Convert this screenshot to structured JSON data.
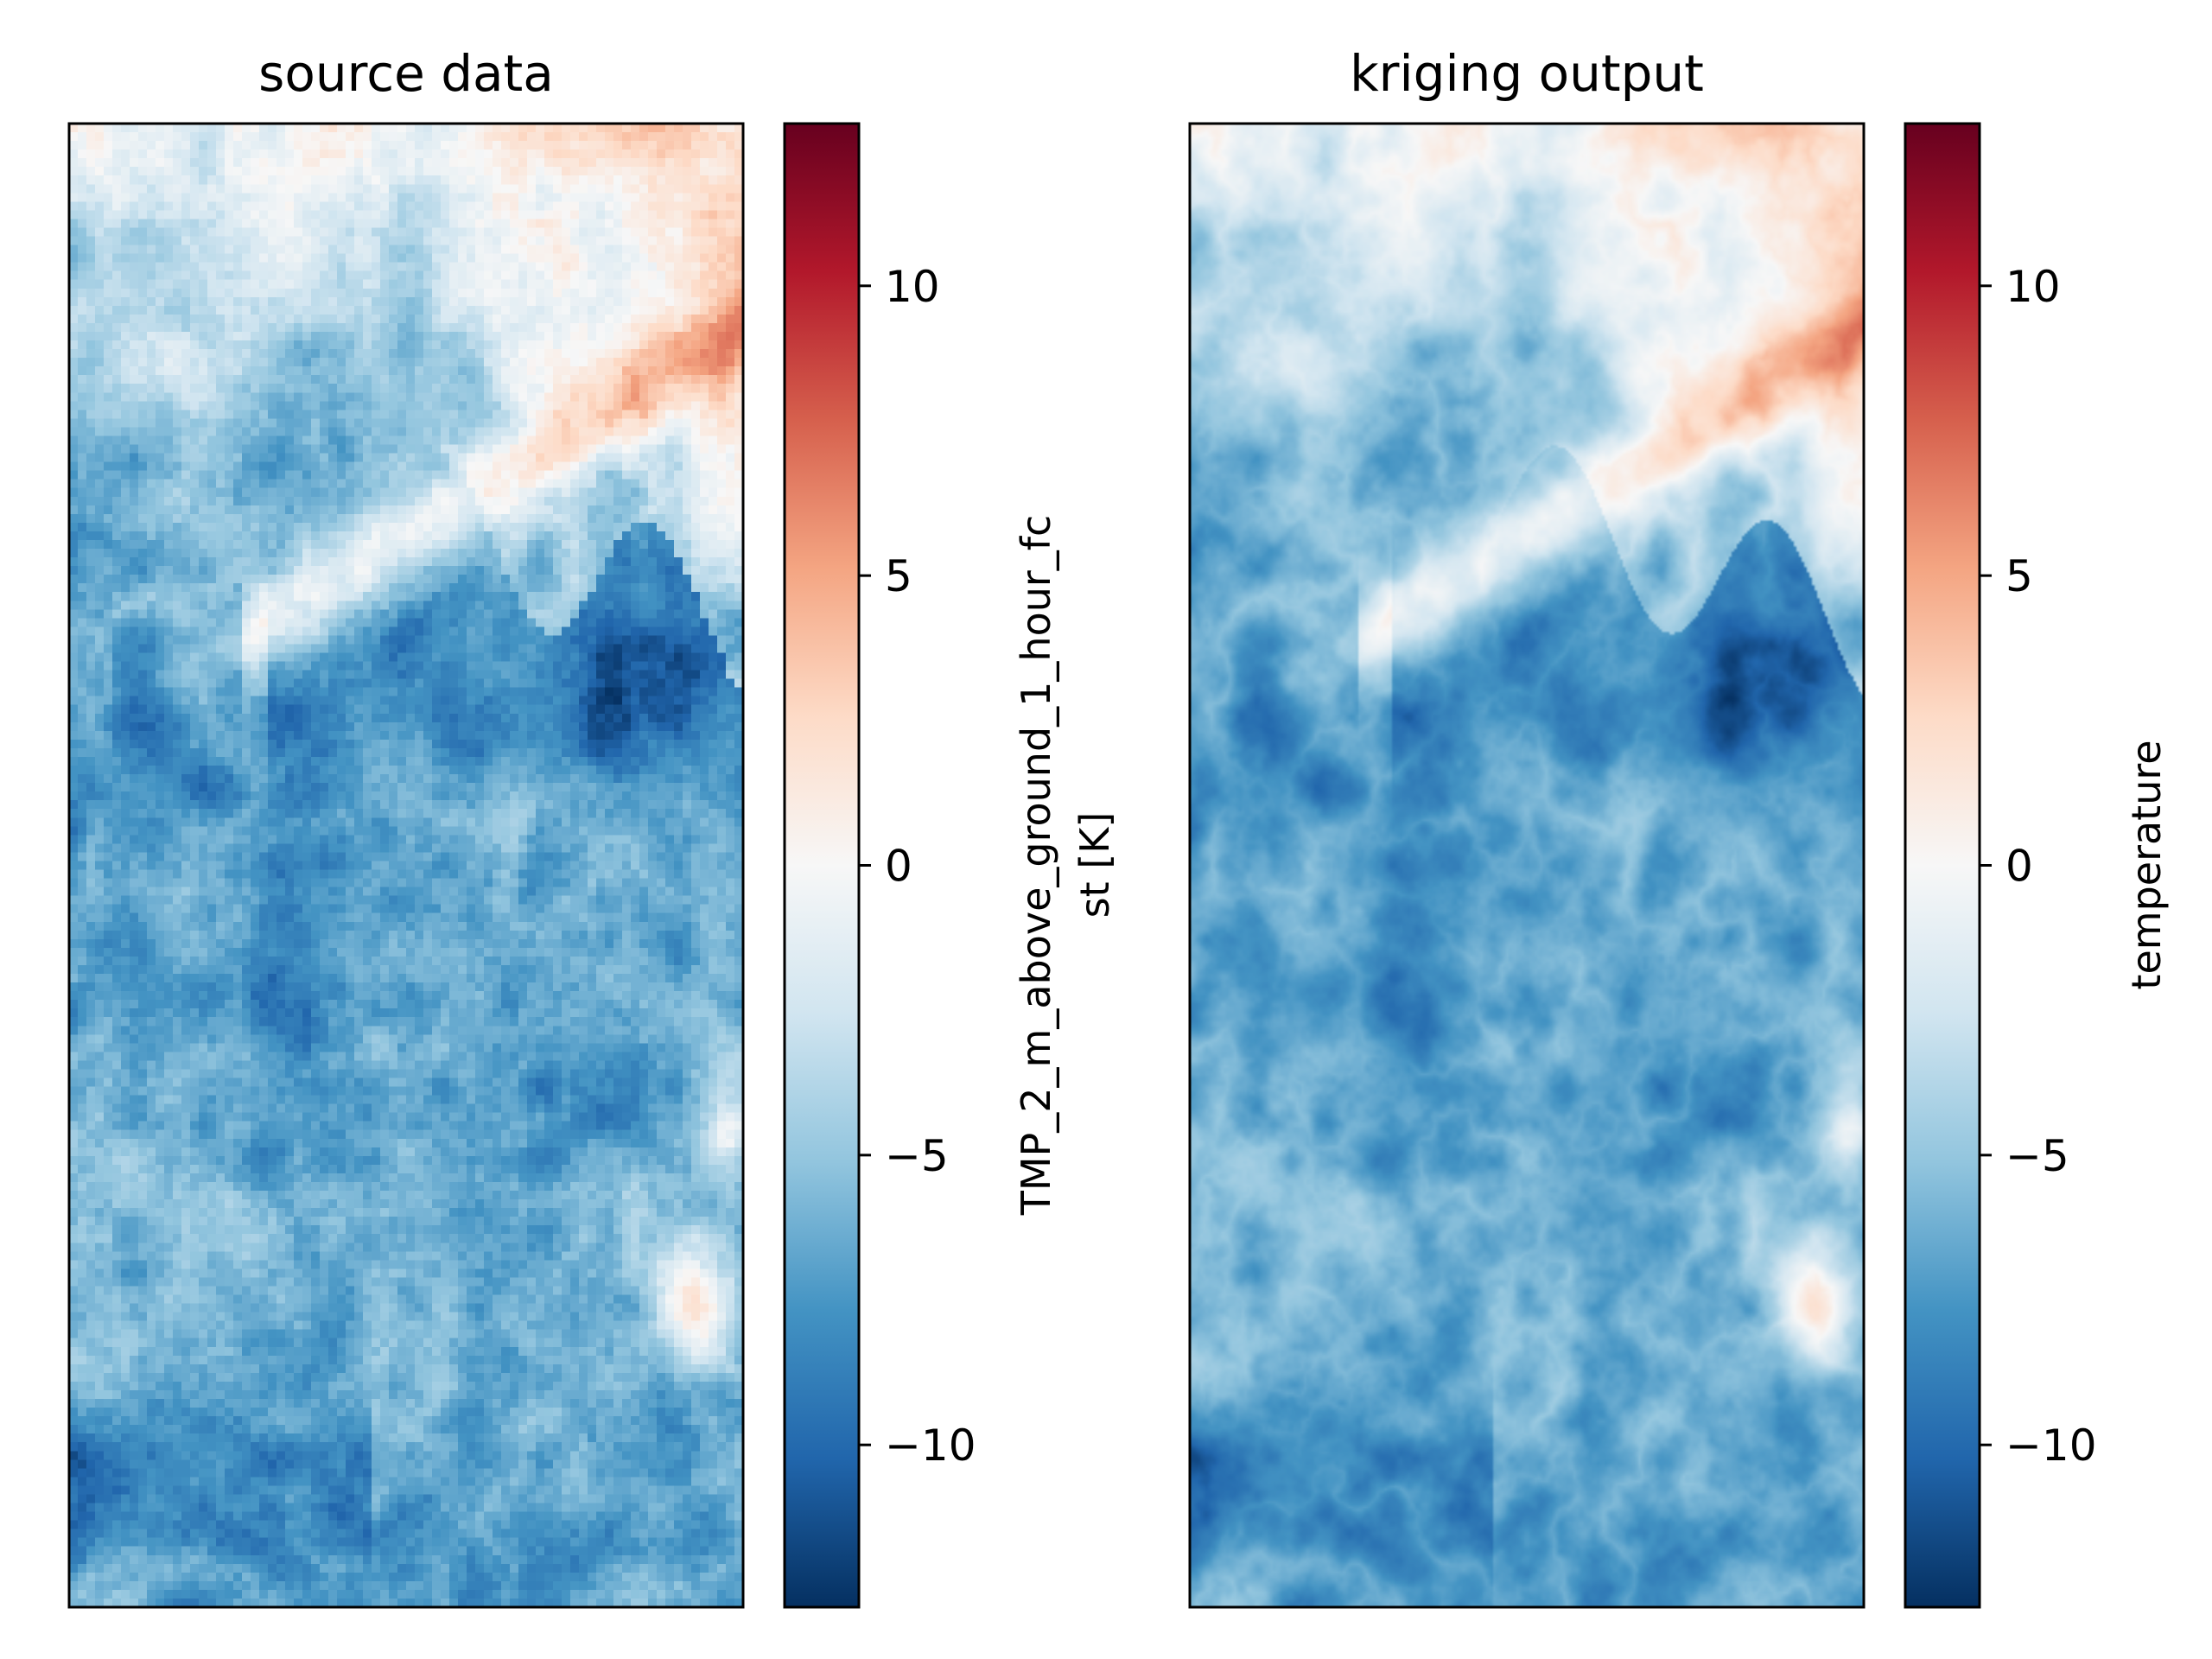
{
  "chart_data": [
    {
      "type": "heatmap",
      "title": "source data",
      "style": "blocky",
      "grid": false,
      "axes_ticks": false,
      "colormap": [
        "#053061",
        "#2166ac",
        "#4393c3",
        "#92c5de",
        "#d1e5f0",
        "#f7f7f7",
        "#fddbc7",
        "#f4a582",
        "#d6604d",
        "#b2182b",
        "#67001f"
      ],
      "color_range": [
        -12.8,
        12.8
      ],
      "colorbar": {
        "label_lines": [
          "TMP_2_m_above_ground_1_hour_fc",
          "st [K]"
        ],
        "ticks": [
          -10,
          -5,
          0,
          5,
          10
        ],
        "tick_labels": [
          "−10",
          "−5",
          "0",
          "5",
          "10"
        ]
      }
    },
    {
      "type": "heatmap",
      "title": "kriging output",
      "style": "smooth",
      "grid": false,
      "axes_ticks": false,
      "colormap": [
        "#053061",
        "#2166ac",
        "#4393c3",
        "#92c5de",
        "#d1e5f0",
        "#f7f7f7",
        "#fddbc7",
        "#f4a582",
        "#d6604d",
        "#b2182b",
        "#67001f"
      ],
      "color_range": [
        -12.8,
        12.8
      ],
      "colorbar": {
        "label_lines": [
          "temperature"
        ],
        "ticks": [
          -10,
          -5,
          0,
          5,
          10
        ],
        "tick_labels": [
          "−10",
          "−5",
          "0",
          "5",
          "10"
        ]
      }
    }
  ]
}
